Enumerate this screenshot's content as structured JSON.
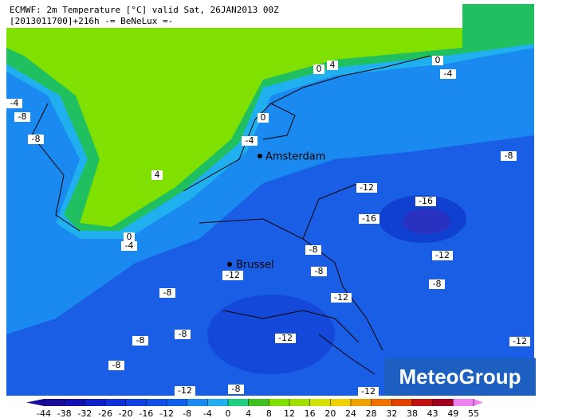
{
  "header": {
    "line1": "ECMWF: 2m Temperature [°C] valid Sat, 26JAN2013 00Z",
    "line2": "[2013011700]+216h  -= BeNeLux =-"
  },
  "cities": [
    "Amsterdam",
    "Brussel"
  ],
  "contour_labels": [
    "0",
    "4",
    "0",
    "-4",
    "-4",
    "-8",
    "-8",
    "0",
    "-4",
    "4",
    "-8",
    "-12",
    "-16",
    "-16",
    "0",
    "-4",
    "-8",
    "-12",
    "-8",
    "-12",
    "-8",
    "-8",
    "-12",
    "-8",
    "-8",
    "-12",
    "-12",
    "-8",
    "-12",
    "-8",
    "-12"
  ],
  "colorbar": {
    "ticks": [
      -44,
      -38,
      -32,
      -26,
      -20,
      -16,
      -12,
      -8,
      -4,
      0,
      4,
      8,
      12,
      16,
      20,
      24,
      28,
      32,
      38,
      43,
      49,
      55
    ],
    "colors": [
      "#1a0a9a",
      "#1510b0",
      "#1020c8",
      "#1030d8",
      "#1040e0",
      "#1050e8",
      "#1060f0",
      "#1a8af0",
      "#20b0f0",
      "#20d080",
      "#40c020",
      "#80e000",
      "#a0e000",
      "#d0e000",
      "#f0d000",
      "#f0a000",
      "#f07000",
      "#e04000",
      "#c01010",
      "#a00020",
      "#f080f0"
    ]
  },
  "logo": "MeteoGroup"
}
